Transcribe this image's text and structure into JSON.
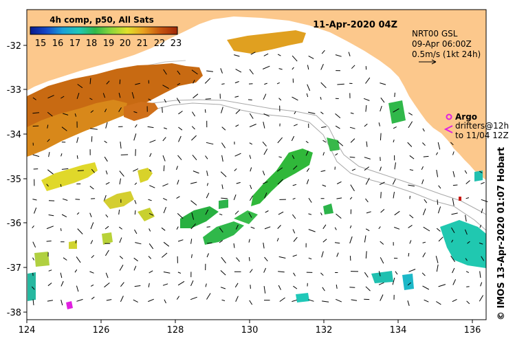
{
  "title": "11-Apr-2020 04Z",
  "colorbar": {
    "title": "4h comp, p50, All Sats",
    "ticks": [
      "15",
      "16",
      "17",
      "18",
      "19",
      "20",
      "21",
      "22",
      "23"
    ],
    "colors": [
      "#0a1a8c",
      "#1448c8",
      "#1aa0d8",
      "#20c8b8",
      "#30b84a",
      "#8cd63a",
      "#e0e02a",
      "#e8a020",
      "#c85810",
      "#a02808"
    ]
  },
  "current_info": {
    "line1": "NRT00 GSL",
    "line2": "09-Apr 06:00Z",
    "line3": "0.5m/s (1kt 24h)"
  },
  "argo_legend": {
    "title": "Argo",
    "line1": "drifters@12h",
    "line2": "to 11/04 12Z"
  },
  "credit": "© IMOS 13-Apr-2020 01:07 Hobart",
  "axes": {
    "lon_ticks": [
      "124",
      "126",
      "128",
      "130",
      "132",
      "134",
      "136"
    ],
    "lat_ticks": [
      "-32",
      "-33",
      "-34",
      "-35",
      "-36",
      "-37",
      "-38"
    ]
  },
  "colors": {
    "land": "#fcc88c",
    "frame": "#000000",
    "isobath": "#a8a8a8",
    "argo": "#e020e0"
  }
}
